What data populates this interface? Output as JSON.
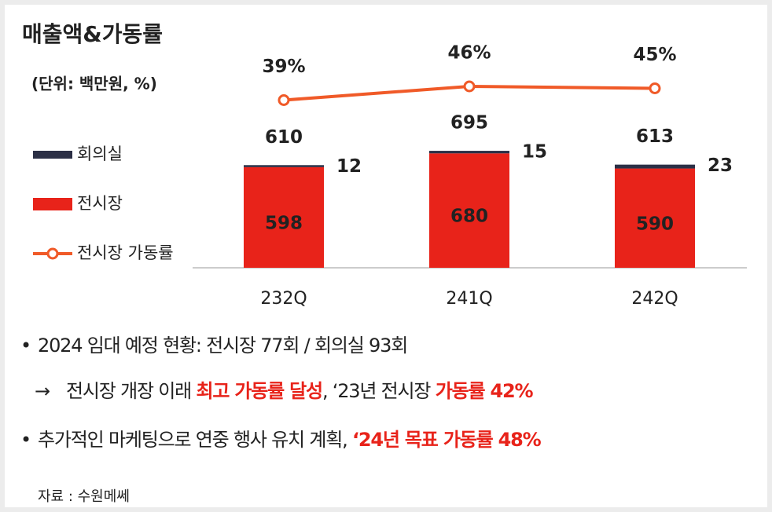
{
  "chart_data": {
    "type": "bar",
    "stacked": true,
    "title": "매출액&가동률",
    "subtitle": "(단위: 백만원, %)",
    "categories": [
      "232Q",
      "241Q",
      "242Q"
    ],
    "series": [
      {
        "name": "회의실",
        "color": "#2b2f45",
        "values": [
          12,
          15,
          23
        ]
      },
      {
        "name": "전시장",
        "color": "#e8231a",
        "values": [
          598,
          680,
          590
        ]
      },
      {
        "name": "전시장 가동률",
        "type": "line",
        "axis": "y2",
        "color": "#f05a28",
        "values": [
          39,
          46,
          45
        ],
        "value_labels": [
          "39%",
          "46%",
          "45%"
        ]
      }
    ],
    "totals": [
      610,
      695,
      613
    ],
    "ylim": [
      0,
      700
    ],
    "y2lim": [
      30,
      50
    ],
    "legend": "left"
  },
  "notes": [
    {
      "bullet": "•",
      "parts": [
        {
          "text": "2024 임대 예정 현황: 전시장 77회 / 회의실 93회"
        }
      ]
    },
    {
      "bullet": "→",
      "parts": [
        {
          "text": "전시장 개장 이래 "
        },
        {
          "text": "최고 가동률 달성",
          "color": "#e8231a"
        },
        {
          "text": ", ‘23년 전시장 "
        },
        {
          "text": "가동률 42%",
          "color": "#e8231a"
        }
      ]
    },
    {
      "bullet": "•",
      "parts": [
        {
          "text": "추가적인 마케팅으로 연중 행사 유치 계획, "
        },
        {
          "text": "‘24년 목표 가동률 48%",
          "color": "#e8231a"
        }
      ]
    }
  ],
  "source": "자료 : 수원메쎄"
}
